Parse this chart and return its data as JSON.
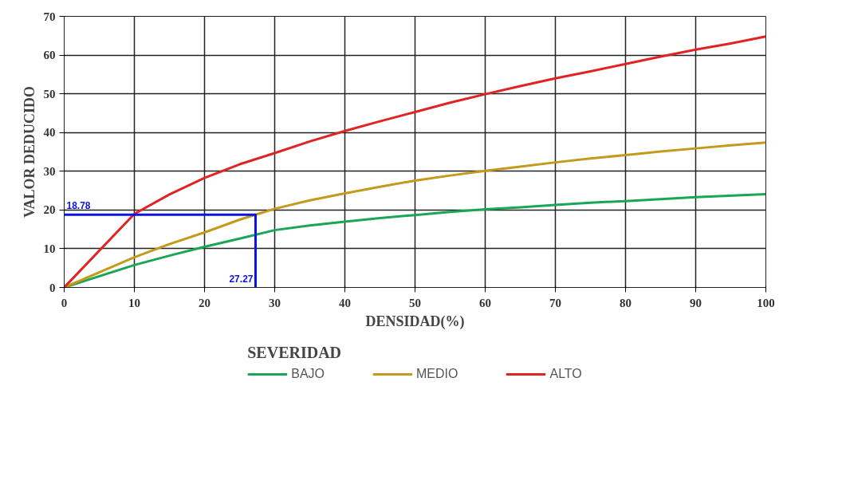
{
  "chart_data": {
    "type": "line",
    "xlabel": "DENSIDAD(%)",
    "ylabel": "VALOR DEDUCIDO",
    "legend_title": "SEVERIDAD",
    "xlim": [
      0,
      100
    ],
    "xticks": [
      0,
      10,
      20,
      30,
      40,
      50,
      60,
      70,
      80,
      90,
      100
    ],
    "ylim": [
      0,
      70
    ],
    "yticks": [
      0,
      10,
      20,
      30,
      40,
      50,
      60,
      70
    ],
    "grid": true,
    "legend": "bottom",
    "marker": "none",
    "line_style": "solid",
    "series": [
      {
        "name": "BAJO",
        "color": "#1aa657",
        "x": [
          0,
          10,
          15,
          20,
          25,
          30,
          35,
          40,
          45,
          50,
          55,
          60,
          65,
          70,
          75,
          80,
          90,
          100
        ],
        "values": [
          0,
          5.8,
          8.2,
          10.5,
          12.6,
          14.8,
          16,
          17,
          17.9,
          18.7,
          19.5,
          20.2,
          20.7,
          21.3,
          21.9,
          22.3,
          23.3,
          24.1
        ]
      },
      {
        "name": "MEDIO",
        "color": "#c49a1c",
        "x": [
          0,
          10,
          15,
          20,
          25,
          27.27,
          30,
          35,
          40,
          45,
          50,
          55,
          60,
          65,
          70,
          75,
          80,
          85,
          90,
          95,
          100
        ],
        "values": [
          0,
          7.8,
          11.2,
          14.2,
          17.5,
          18.78,
          20.3,
          22.5,
          24.3,
          26,
          27.6,
          28.9,
          30.1,
          31.2,
          32.3,
          33.3,
          34.2,
          35.1,
          35.9,
          36.7,
          37.4
        ]
      },
      {
        "name": "ALTO",
        "color": "#e02424",
        "x": [
          0,
          10,
          15,
          20,
          25,
          30,
          35,
          40,
          45,
          50,
          55,
          60,
          65,
          70,
          75,
          80,
          85,
          90,
          95,
          100
        ],
        "values": [
          0,
          19,
          24,
          28.3,
          31.8,
          34.7,
          37.7,
          40.4,
          42.9,
          45.3,
          47.7,
          49.9,
          52,
          54,
          55.8,
          57.7,
          59.6,
          61.4,
          63,
          64.8
        ]
      },
      {
        "color": "#0a14e6",
        "x": [
          0,
          27.27,
          27.27
        ],
        "values": [
          18.78,
          18.78,
          0
        ]
      }
    ],
    "annotations": [
      {
        "text": "18.78",
        "x": 0,
        "y": 18.78
      },
      {
        "text": "27.27",
        "x": 27.27,
        "y": 0
      }
    ]
  }
}
